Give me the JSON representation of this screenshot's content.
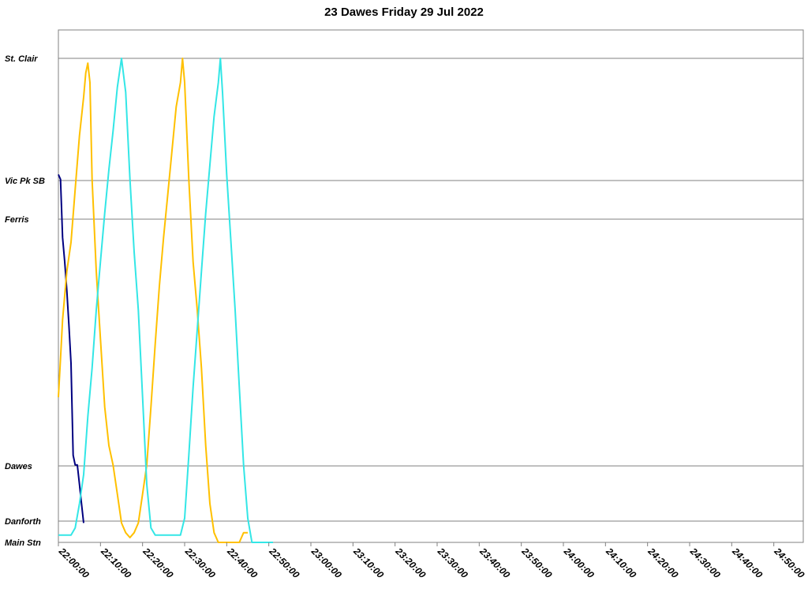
{
  "chart_data": {
    "type": "line",
    "title": "23 Dawes Friday 29 Jul 2022",
    "xlabel": "",
    "ylabel": "",
    "x_ticks": [
      "22:00:00",
      "22:10:00",
      "22:20:00",
      "22:30:00",
      "22:40:00",
      "22:50:00",
      "23:00:00",
      "23:10:00",
      "23:20:00",
      "23:30:00",
      "23:40:00",
      "23:50:00",
      "24:00:00",
      "24:10:00",
      "24:20:00",
      "24:30:00",
      "24:40:00",
      "24:50:00"
    ],
    "xlim": [
      "22:00:00",
      "24:57:00"
    ],
    "stops": [
      {
        "name": "St. Clair",
        "gridline": true
      },
      {
        "name": "Vic Pk SB",
        "gridline": true
      },
      {
        "name": "Ferris",
        "gridline": true
      },
      {
        "name": "Dawes",
        "gridline": true
      },
      {
        "name": "Danforth",
        "gridline": true
      },
      {
        "name": "Main Stn",
        "gridline": false
      }
    ],
    "series": [
      {
        "color": "#000080",
        "points": [
          [
            "22:00:00",
            0.76
          ],
          [
            "22:00:30",
            0.75
          ],
          [
            "22:01:00",
            0.63
          ],
          [
            "22:01:30",
            0.58
          ],
          [
            "22:02:00",
            0.52
          ],
          [
            "22:02:30",
            0.45
          ],
          [
            "22:03:00",
            0.37
          ],
          [
            "22:03:30",
            0.18
          ],
          [
            "22:04:00",
            0.16
          ],
          [
            "22:04:30",
            0.16
          ],
          [
            "22:05:00",
            0.12
          ],
          [
            "22:05:30",
            0.08
          ],
          [
            "22:06:00",
            0.04
          ]
        ]
      },
      {
        "color": "#FFC000",
        "points": [
          [
            "22:00:00",
            0.3
          ],
          [
            "22:00:30",
            0.38
          ],
          [
            "22:01:00",
            0.46
          ],
          [
            "22:02:00",
            0.56
          ],
          [
            "22:03:00",
            0.62
          ],
          [
            "22:04:00",
            0.73
          ],
          [
            "22:05:00",
            0.84
          ],
          [
            "22:06:00",
            0.92
          ],
          [
            "22:06:30",
            0.97
          ],
          [
            "22:07:00",
            0.99
          ],
          [
            "22:07:30",
            0.95
          ],
          [
            "22:08:00",
            0.75
          ],
          [
            "22:09:00",
            0.56
          ],
          [
            "22:10:00",
            0.42
          ],
          [
            "22:11:00",
            0.28
          ],
          [
            "22:12:00",
            0.2
          ],
          [
            "22:13:00",
            0.16
          ],
          [
            "22:14:00",
            0.1
          ],
          [
            "22:15:00",
            0.04
          ],
          [
            "22:16:00",
            0.02
          ],
          [
            "22:17:00",
            0.01
          ],
          [
            "22:18:00",
            0.02
          ],
          [
            "22:19:00",
            0.04
          ],
          [
            "22:20:00",
            0.1
          ],
          [
            "22:21:00",
            0.16
          ],
          [
            "22:22:00",
            0.28
          ],
          [
            "22:23:00",
            0.41
          ],
          [
            "22:24:00",
            0.53
          ],
          [
            "22:25:00",
            0.63
          ],
          [
            "22:26:00",
            0.72
          ],
          [
            "22:27:00",
            0.81
          ],
          [
            "22:28:00",
            0.9
          ],
          [
            "22:29:00",
            0.95
          ],
          [
            "22:29:30",
            1.0
          ],
          [
            "22:30:00",
            0.95
          ],
          [
            "22:31:00",
            0.75
          ],
          [
            "22:32:00",
            0.58
          ],
          [
            "22:33:00",
            0.48
          ],
          [
            "22:34:00",
            0.36
          ],
          [
            "22:35:00",
            0.2
          ],
          [
            "22:36:00",
            0.08
          ],
          [
            "22:37:00",
            0.02
          ],
          [
            "22:38:00",
            0.0
          ],
          [
            "22:43:00",
            0.0
          ],
          [
            "22:44:00",
            0.02
          ],
          [
            "22:45:00",
            0.02
          ]
        ]
      },
      {
        "color": "#33E6E6",
        "points": [
          [
            "22:00:00",
            0.015
          ],
          [
            "22:03:00",
            0.015
          ],
          [
            "22:04:00",
            0.03
          ],
          [
            "22:05:00",
            0.08
          ],
          [
            "22:06:00",
            0.14
          ],
          [
            "22:07:00",
            0.26
          ],
          [
            "22:08:00",
            0.36
          ],
          [
            "22:09:00",
            0.48
          ],
          [
            "22:10:00",
            0.58
          ],
          [
            "22:11:00",
            0.68
          ],
          [
            "22:12:00",
            0.77
          ],
          [
            "22:13:00",
            0.85
          ],
          [
            "22:14:00",
            0.94
          ],
          [
            "22:15:00",
            1.0
          ],
          [
            "22:16:00",
            0.93
          ],
          [
            "22:17:00",
            0.75
          ],
          [
            "22:18:00",
            0.6
          ],
          [
            "22:19:00",
            0.48
          ],
          [
            "22:20:00",
            0.3
          ],
          [
            "22:21:00",
            0.12
          ],
          [
            "22:22:00",
            0.03
          ],
          [
            "22:23:00",
            0.015
          ],
          [
            "22:28:00",
            0.015
          ],
          [
            "22:29:00",
            0.015
          ],
          [
            "22:30:00",
            0.05
          ],
          [
            "22:31:00",
            0.18
          ],
          [
            "22:32:00",
            0.32
          ],
          [
            "22:33:00",
            0.44
          ],
          [
            "22:34:00",
            0.56
          ],
          [
            "22:35:00",
            0.68
          ],
          [
            "22:36:00",
            0.78
          ],
          [
            "22:37:00",
            0.88
          ],
          [
            "22:38:00",
            0.95
          ],
          [
            "22:38:30",
            1.0
          ],
          [
            "22:39:00",
            0.93
          ],
          [
            "22:40:00",
            0.76
          ],
          [
            "22:41:00",
            0.62
          ],
          [
            "22:42:00",
            0.48
          ],
          [
            "22:43:00",
            0.32
          ],
          [
            "22:44:00",
            0.16
          ],
          [
            "22:45:00",
            0.05
          ],
          [
            "22:46:00",
            0.0
          ],
          [
            "22:51:00",
            0.0
          ]
        ]
      }
    ]
  }
}
